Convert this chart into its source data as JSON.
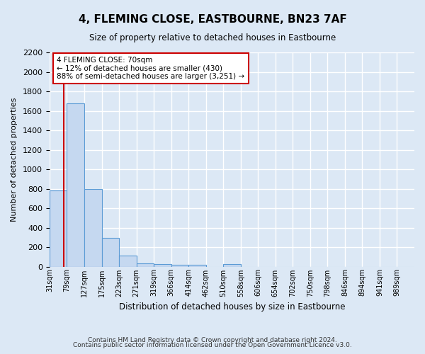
{
  "title": "4, FLEMING CLOSE, EASTBOURNE, BN23 7AF",
  "subtitle": "Size of property relative to detached houses in Eastbourne",
  "xlabel": "Distribution of detached houses by size in Eastbourne",
  "ylabel": "Number of detached properties",
  "bar_labels": [
    "31sqm",
    "79sqm",
    "127sqm",
    "175sqm",
    "223sqm",
    "271sqm",
    "319sqm",
    "366sqm",
    "414sqm",
    "462sqm",
    "510sqm",
    "558sqm",
    "606sqm",
    "654sqm",
    "702sqm",
    "750sqm",
    "798sqm",
    "846sqm",
    "894sqm",
    "941sqm",
    "989sqm"
  ],
  "bar_values": [
    780,
    1680,
    795,
    295,
    110,
    35,
    22,
    20,
    20,
    0,
    25,
    0,
    0,
    0,
    0,
    0,
    0,
    0,
    0,
    0,
    0
  ],
  "bar_color": "#c5d8f0",
  "bar_edge_color": "#5b9bd5",
  "annotation_line1": "4 FLEMING CLOSE: 70sqm",
  "annotation_line2": "← 12% of detached houses are smaller (430)",
  "annotation_line3": "88% of semi-detached houses are larger (3,251) →",
  "annotation_box_edge_color": "#cc0000",
  "ylim": [
    0,
    2200
  ],
  "yticks": [
    0,
    200,
    400,
    600,
    800,
    1000,
    1200,
    1400,
    1600,
    1800,
    2000,
    2200
  ],
  "footer_line1": "Contains HM Land Registry data © Crown copyright and database right 2024.",
  "footer_line2": "Contains public sector information licensed under the Open Government Licence v3.0.",
  "bg_color": "#dce8f5",
  "plot_bg_color": "#dce8f5",
  "grid_color": "#ffffff"
}
